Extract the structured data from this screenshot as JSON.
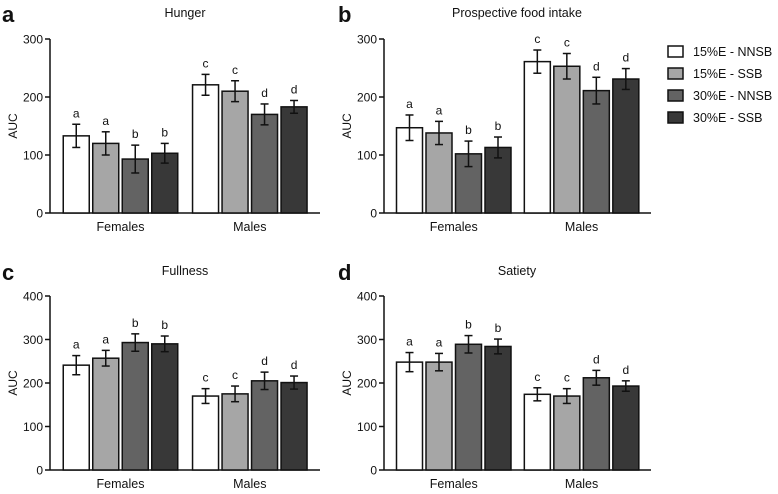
{
  "chart_data": [
    {
      "type": "bar",
      "panel_label": "a",
      "title": "Hunger",
      "ylabel": "AUC",
      "xlabel": "",
      "ylim": [
        0,
        300
      ],
      "yticks": [
        0,
        100,
        200,
        300
      ],
      "categories": [
        "Females",
        "Males"
      ],
      "series": [
        {
          "name": "15%E - NNSB",
          "values": [
            133,
            221
          ],
          "errors": [
            20,
            18
          ],
          "letters": [
            "a",
            "c"
          ]
        },
        {
          "name": "15%E - SSB",
          "values": [
            120,
            210
          ],
          "errors": [
            20,
            18
          ],
          "letters": [
            "a",
            "c"
          ]
        },
        {
          "name": "30%E - NNSB",
          "values": [
            93,
            170
          ],
          "errors": [
            24,
            18
          ],
          "letters": [
            "b",
            "d"
          ]
        },
        {
          "name": "30%E - SSB",
          "values": [
            103,
            183
          ],
          "errors": [
            17,
            11
          ],
          "letters": [
            "b",
            "d"
          ]
        }
      ]
    },
    {
      "type": "bar",
      "panel_label": "b",
      "title": "Prospective food intake",
      "ylabel": "AUC",
      "xlabel": "",
      "ylim": [
        0,
        300
      ],
      "yticks": [
        0,
        100,
        200,
        300
      ],
      "categories": [
        "Females",
        "Males"
      ],
      "series": [
        {
          "name": "15%E - NNSB",
          "values": [
            147,
            261
          ],
          "errors": [
            22,
            20
          ],
          "letters": [
            "a",
            "c"
          ]
        },
        {
          "name": "15%E - SSB",
          "values": [
            138,
            253
          ],
          "errors": [
            20,
            22
          ],
          "letters": [
            "a",
            "c"
          ]
        },
        {
          "name": "30%E - NNSB",
          "values": [
            102,
            211
          ],
          "errors": [
            22,
            23
          ],
          "letters": [
            "b",
            "d"
          ]
        },
        {
          "name": "30%E - SSB",
          "values": [
            113,
            231
          ],
          "errors": [
            18,
            18
          ],
          "letters": [
            "b",
            "d"
          ]
        }
      ],
      "legend": {
        "position": "right",
        "entries": [
          "15%E - NNSB",
          "15%E - SSB",
          "30%E - NNSB",
          "30%E - SSB"
        ]
      }
    },
    {
      "type": "bar",
      "panel_label": "c",
      "title": "Fullness",
      "ylabel": "AUC",
      "xlabel": "",
      "ylim": [
        0,
        400
      ],
      "yticks": [
        0,
        100,
        200,
        300,
        400
      ],
      "categories": [
        "Females",
        "Males"
      ],
      "series": [
        {
          "name": "15%E - NNSB",
          "values": [
            241,
            170
          ],
          "errors": [
            22,
            17
          ],
          "letters": [
            "a",
            "c"
          ]
        },
        {
          "name": "15%E - SSB",
          "values": [
            257,
            175
          ],
          "errors": [
            18,
            18
          ],
          "letters": [
            "a",
            "c"
          ]
        },
        {
          "name": "30%E - NNSB",
          "values": [
            293,
            205
          ],
          "errors": [
            20,
            20
          ],
          "letters": [
            "b",
            "d"
          ]
        },
        {
          "name": "30%E - SSB",
          "values": [
            290,
            201
          ],
          "errors": [
            18,
            15
          ],
          "letters": [
            "b",
            "d"
          ]
        }
      ]
    },
    {
      "type": "bar",
      "panel_label": "d",
      "title": "Satiety",
      "ylabel": "AUC",
      "xlabel": "",
      "ylim": [
        0,
        400
      ],
      "yticks": [
        0,
        100,
        200,
        300,
        400
      ],
      "categories": [
        "Females",
        "Males"
      ],
      "series": [
        {
          "name": "15%E - NNSB",
          "values": [
            248,
            174
          ],
          "errors": [
            22,
            15
          ],
          "letters": [
            "a",
            "c"
          ]
        },
        {
          "name": "15%E - SSB",
          "values": [
            248,
            170
          ],
          "errors": [
            20,
            17
          ],
          "letters": [
            "a",
            "c"
          ]
        },
        {
          "name": "30%E - NNSB",
          "values": [
            289,
            212
          ],
          "errors": [
            20,
            17
          ],
          "letters": [
            "b",
            "d"
          ]
        },
        {
          "name": "30%E - SSB",
          "values": [
            284,
            193
          ],
          "errors": [
            17,
            12
          ],
          "letters": [
            "b",
            "d"
          ]
        }
      ]
    }
  ],
  "colors": [
    "#ffffff",
    "#a6a6a6",
    "#636363",
    "#383838"
  ]
}
